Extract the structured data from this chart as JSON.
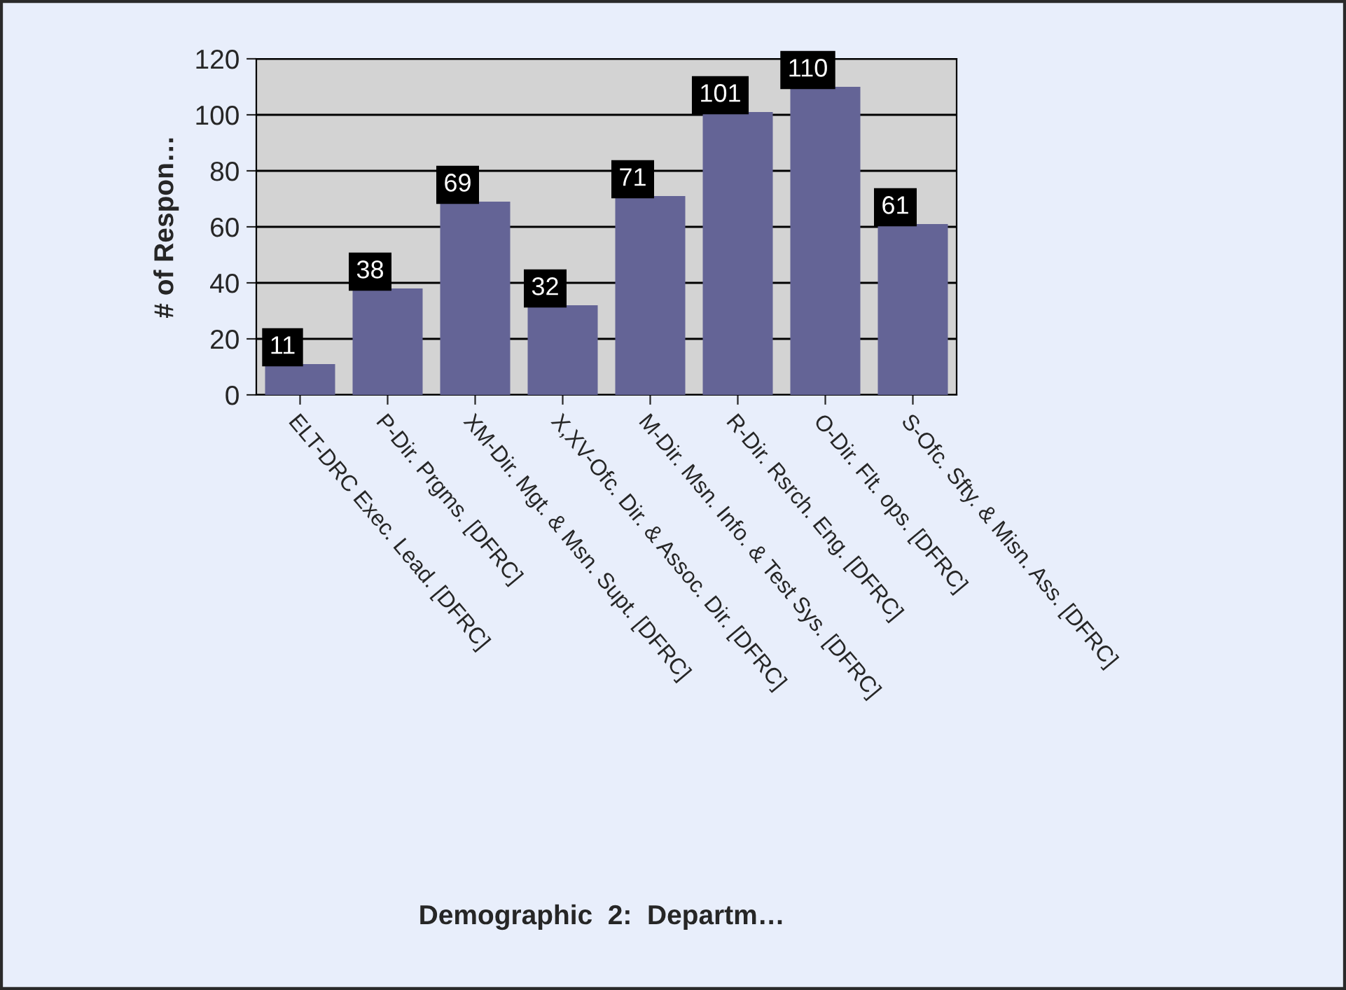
{
  "chart_data": {
    "type": "bar",
    "annotations": [
      "Demographic  2:  Departm…"
    ],
    "ylabel": "# of Respon…",
    "categories": [
      "ELT-DRC Exec. Lead. [DFRC]",
      "P-Dir. Prgms. [DFRC]",
      "XM-Dir. Mgt. & Msn. Supt. [DFRC]",
      "X,XV-Ofc. Dir. & Assoc. Dir. [DFRC]",
      "M-Dir. Msn. Info. & Test Sys. [DFRC]",
      "R-Dir. Rsrch. Eng. [DFRC]",
      "O-Dir. Flt. ops. [DFRC]",
      "S-Ofc. Sfty. & Misn. Ass. [DFRC]"
    ],
    "values": [
      11,
      38,
      69,
      32,
      71,
      101,
      110,
      61
    ],
    "color": "#646496",
    "ylim": [
      0,
      120
    ],
    "yticks": [
      0,
      20,
      40,
      60,
      80,
      100,
      120
    ],
    "grid": "y",
    "data_labels": true,
    "legend": false
  }
}
